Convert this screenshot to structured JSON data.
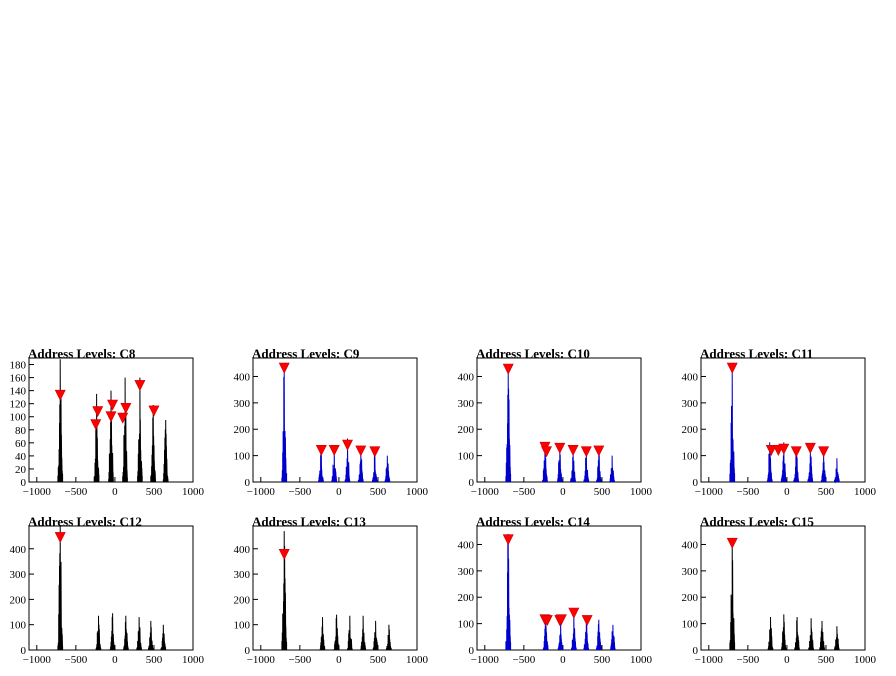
{
  "chart_data": [
    {
      "type": "line",
      "title": "Address Levels: C8",
      "xlim": [
        -1100,
        1000
      ],
      "ylim": [
        0,
        190
      ],
      "xticks": [
        -1000,
        -500,
        0,
        500,
        1000
      ],
      "xtick_labels": [
        "−1000",
        "−500",
        "0",
        "500",
        "1000"
      ],
      "yticks": [
        0,
        20,
        40,
        60,
        80,
        100,
        120,
        140,
        160,
        180
      ],
      "yticks_labels": [
        "0",
        "20",
        "40",
        "60",
        "80",
        "100",
        "120",
        "140",
        "160",
        "180"
      ],
      "line_color": "#000000",
      "peaks": [
        {
          "x": -700,
          "y": 188
        },
        {
          "x": -235,
          "y": 135
        },
        {
          "x": -50,
          "y": 140
        },
        {
          "x": 130,
          "y": 160
        },
        {
          "x": 320,
          "y": 160
        },
        {
          "x": 490,
          "y": 118
        },
        {
          "x": 650,
          "y": 95
        }
      ],
      "markers": [
        {
          "x": -700,
          "y": 133
        },
        {
          "x": -245,
          "y": 88
        },
        {
          "x": -220,
          "y": 108
        },
        {
          "x": -50,
          "y": 100
        },
        {
          "x": -30,
          "y": 118
        },
        {
          "x": 100,
          "y": 98
        },
        {
          "x": 140,
          "y": 113
        },
        {
          "x": 320,
          "y": 148
        },
        {
          "x": 500,
          "y": 109
        }
      ]
    },
    {
      "type": "line",
      "title": "Address Levels: C9",
      "xlim": [
        -1100,
        1000
      ],
      "ylim": [
        0,
        470
      ],
      "xticks": [
        -1000,
        -500,
        0,
        500,
        1000
      ],
      "xtick_labels": [
        "−1000",
        "−500",
        "0",
        "500",
        "1000"
      ],
      "yticks": [
        0,
        100,
        200,
        300,
        400
      ],
      "yticks_labels": [
        "0",
        "100",
        "200",
        "300",
        "400"
      ],
      "line_color": "#0000cc",
      "peaks": [
        {
          "x": -700,
          "y": 440
        },
        {
          "x": -230,
          "y": 125
        },
        {
          "x": -60,
          "y": 140
        },
        {
          "x": 110,
          "y": 165
        },
        {
          "x": 280,
          "y": 135
        },
        {
          "x": 460,
          "y": 120
        },
        {
          "x": 620,
          "y": 100
        }
      ],
      "markers": [
        {
          "x": -700,
          "y": 432
        },
        {
          "x": -225,
          "y": 120
        },
        {
          "x": -60,
          "y": 120
        },
        {
          "x": 110,
          "y": 140
        },
        {
          "x": 280,
          "y": 118
        },
        {
          "x": 460,
          "y": 115
        }
      ]
    },
    {
      "type": "line",
      "title": "Address Levels: C10",
      "xlim": [
        -1100,
        1000
      ],
      "ylim": [
        0,
        470
      ],
      "xticks": [
        -1000,
        -500,
        0,
        500,
        1000
      ],
      "xtick_labels": [
        "−1000",
        "−500",
        "0",
        "500",
        "1000"
      ],
      "yticks": [
        0,
        100,
        200,
        300,
        400
      ],
      "yticks_labels": [
        "0",
        "100",
        "200",
        "300",
        "400"
      ],
      "line_color": "#0000cc",
      "peaks": [
        {
          "x": -700,
          "y": 440
        },
        {
          "x": -230,
          "y": 140
        },
        {
          "x": -40,
          "y": 140
        },
        {
          "x": 130,
          "y": 130
        },
        {
          "x": 300,
          "y": 130
        },
        {
          "x": 460,
          "y": 125
        },
        {
          "x": 630,
          "y": 100
        }
      ],
      "markers": [
        {
          "x": -700,
          "y": 428
        },
        {
          "x": -230,
          "y": 132
        },
        {
          "x": -210,
          "y": 115
        },
        {
          "x": -40,
          "y": 128
        },
        {
          "x": 130,
          "y": 120
        },
        {
          "x": 300,
          "y": 115
        },
        {
          "x": 460,
          "y": 118
        }
      ]
    },
    {
      "type": "line",
      "title": "Address Levels: C11",
      "xlim": [
        -1100,
        1000
      ],
      "ylim": [
        0,
        470
      ],
      "xticks": [
        -1000,
        -500,
        0,
        500,
        1000
      ],
      "xtick_labels": [
        "−1000",
        "−500",
        "0",
        "500",
        "1000"
      ],
      "yticks": [
        0,
        100,
        200,
        300,
        400
      ],
      "yticks_labels": [
        "0",
        "100",
        "200",
        "300",
        "400"
      ],
      "line_color": "#0000cc",
      "peaks": [
        {
          "x": -700,
          "y": 440
        },
        {
          "x": -220,
          "y": 150
        },
        {
          "x": -40,
          "y": 150
        },
        {
          "x": 120,
          "y": 130
        },
        {
          "x": 300,
          "y": 130
        },
        {
          "x": 470,
          "y": 115
        },
        {
          "x": 640,
          "y": 90
        }
      ],
      "markers": [
        {
          "x": -700,
          "y": 432
        },
        {
          "x": -200,
          "y": 120
        },
        {
          "x": -110,
          "y": 120
        },
        {
          "x": -40,
          "y": 125
        },
        {
          "x": 120,
          "y": 115
        },
        {
          "x": 300,
          "y": 128
        },
        {
          "x": 470,
          "y": 115
        }
      ]
    },
    {
      "type": "line",
      "title": "Address Levels: C12",
      "xlim": [
        -1100,
        1000
      ],
      "ylim": [
        0,
        490
      ],
      "xticks": [
        -1000,
        -500,
        0,
        500,
        1000
      ],
      "xtick_labels": [
        "−1000",
        "−500",
        "0",
        "500",
        "1000"
      ],
      "yticks": [
        0,
        100,
        200,
        300,
        400
      ],
      "yticks_labels": [
        "0",
        "100",
        "200",
        "300",
        "400"
      ],
      "line_color": "#000000",
      "peaks": [
        {
          "x": -700,
          "y": 490
        },
        {
          "x": -210,
          "y": 135
        },
        {
          "x": -30,
          "y": 145
        },
        {
          "x": 140,
          "y": 135
        },
        {
          "x": 310,
          "y": 130
        },
        {
          "x": 460,
          "y": 115
        },
        {
          "x": 620,
          "y": 100
        }
      ],
      "markers": [
        {
          "x": -700,
          "y": 445
        }
      ]
    },
    {
      "type": "line",
      "title": "Address Levels: C13",
      "xlim": [
        -1100,
        1000
      ],
      "ylim": [
        0,
        490
      ],
      "xticks": [
        -1000,
        -500,
        0,
        500,
        1000
      ],
      "xtick_labels": [
        "−1000",
        "−500",
        "0",
        "500",
        "1000"
      ],
      "yticks": [
        0,
        100,
        200,
        300,
        400
      ],
      "yticks_labels": [
        "0",
        "100",
        "200",
        "300",
        "400"
      ],
      "line_color": "#000000",
      "peaks": [
        {
          "x": -700,
          "y": 470
        },
        {
          "x": -210,
          "y": 130
        },
        {
          "x": -30,
          "y": 140
        },
        {
          "x": 140,
          "y": 135
        },
        {
          "x": 310,
          "y": 135
        },
        {
          "x": 470,
          "y": 115
        },
        {
          "x": 640,
          "y": 100
        }
      ],
      "markers": [
        {
          "x": -700,
          "y": 378
        }
      ]
    },
    {
      "type": "line",
      "title": "Address Levels: C14",
      "xlim": [
        -1100,
        1000
      ],
      "ylim": [
        0,
        470
      ],
      "xticks": [
        -1000,
        -500,
        0,
        500,
        1000
      ],
      "xtick_labels": [
        "−1000",
        "−500",
        "0",
        "500",
        "1000"
      ],
      "yticks": [
        0,
        100,
        200,
        300,
        400
      ],
      "yticks_labels": [
        "0",
        "100",
        "200",
        "300",
        "400"
      ],
      "line_color": "#0000cc",
      "peaks": [
        {
          "x": -700,
          "y": 440
        },
        {
          "x": -220,
          "y": 120
        },
        {
          "x": -30,
          "y": 125
        },
        {
          "x": 140,
          "y": 150
        },
        {
          "x": 300,
          "y": 120
        },
        {
          "x": 460,
          "y": 115
        },
        {
          "x": 640,
          "y": 95
        }
      ],
      "markers": [
        {
          "x": -700,
          "y": 418
        },
        {
          "x": -230,
          "y": 115
        },
        {
          "x": -200,
          "y": 112
        },
        {
          "x": -40,
          "y": 112
        },
        {
          "x": -20,
          "y": 115
        },
        {
          "x": 140,
          "y": 140
        },
        {
          "x": 310,
          "y": 112
        }
      ]
    },
    {
      "type": "line",
      "title": "Address Levels: C15",
      "xlim": [
        -1100,
        1000
      ],
      "ylim": [
        0,
        470
      ],
      "xticks": [
        -1000,
        -500,
        0,
        500,
        1000
      ],
      "xtick_labels": [
        "−1000",
        "−500",
        "0",
        "500",
        "1000"
      ],
      "yticks": [
        0,
        100,
        200,
        300,
        400
      ],
      "yticks_labels": [
        "0",
        "100",
        "200",
        "300",
        "400"
      ],
      "line_color": "#000000",
      "peaks": [
        {
          "x": -700,
          "y": 420
        },
        {
          "x": -210,
          "y": 125
        },
        {
          "x": -40,
          "y": 135
        },
        {
          "x": 130,
          "y": 125
        },
        {
          "x": 310,
          "y": 120
        },
        {
          "x": 450,
          "y": 110
        },
        {
          "x": 640,
          "y": 90
        }
      ],
      "markers": [
        {
          "x": -700,
          "y": 405
        }
      ]
    }
  ]
}
